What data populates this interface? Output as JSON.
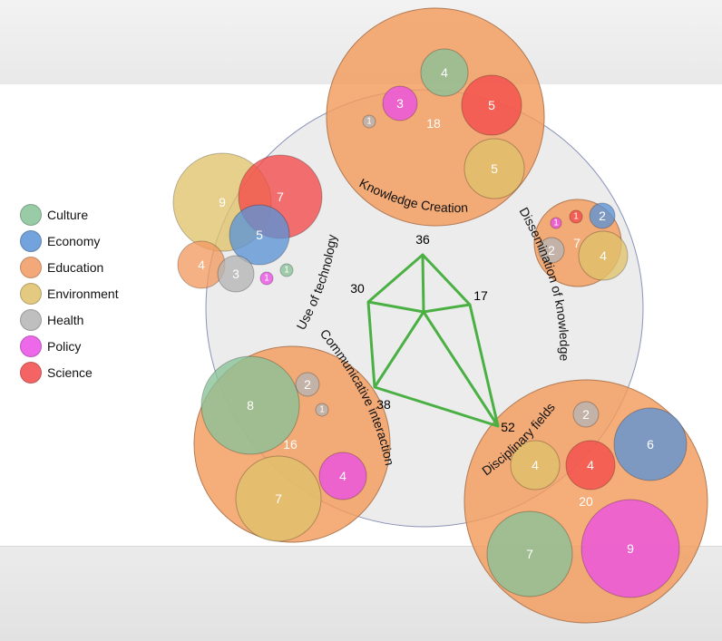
{
  "legend": [
    {
      "label": "Culture",
      "color": "#88c398"
    },
    {
      "label": "Economy",
      "color": "#5b93d6"
    },
    {
      "label": "Education",
      "color": "#f29a62"
    },
    {
      "label": "Environment",
      "color": "#e0c16b"
    },
    {
      "label": "Health",
      "color": "#b5b5b5"
    },
    {
      "label": "Policy",
      "color": "#ea4fe6"
    },
    {
      "label": "Science",
      "color": "#f44a4a"
    }
  ],
  "dimensions": {
    "knowledge_creation": "Knowledge Creation",
    "dissemination": "Dissemination of knowledge",
    "disciplinary": "Disciplinary fields",
    "communicative": "Communicative interaction",
    "technology": "Use of technology"
  },
  "radar": {
    "values": [
      "36",
      "17",
      "52",
      "38",
      "30"
    ],
    "line_color": "#4bb043"
  },
  "clusters": [
    {
      "name": "Knowledge Creation",
      "total": "18",
      "bubbles": [
        {
          "category": "Culture",
          "value": "4"
        },
        {
          "category": "Policy",
          "value": "3"
        },
        {
          "category": "Science",
          "value": "5"
        },
        {
          "category": "Health",
          "value": "1"
        },
        {
          "category": "Environment",
          "value": "5"
        }
      ]
    },
    {
      "name": "Dissemination of knowledge",
      "total": "7",
      "bubbles": [
        {
          "category": "Policy",
          "value": "1"
        },
        {
          "category": "Science",
          "value": "1"
        },
        {
          "category": "Economy",
          "value": "2"
        },
        {
          "category": "Health",
          "value": "2"
        },
        {
          "category": "Environment",
          "value": "4"
        }
      ]
    },
    {
      "name": "Use of technology",
      "total": "",
      "bubbles": [
        {
          "category": "Environment",
          "value": "9"
        },
        {
          "category": "Science",
          "value": "7"
        },
        {
          "category": "Economy",
          "value": "5"
        },
        {
          "category": "Education",
          "value": "4"
        },
        {
          "category": "Health",
          "value": "3"
        },
        {
          "category": "Policy",
          "value": "1"
        },
        {
          "category": "Culture",
          "value": "1"
        }
      ]
    },
    {
      "name": "Communicative interaction",
      "total": "16",
      "bubbles": [
        {
          "category": "Culture",
          "value": "8"
        },
        {
          "category": "Health",
          "value": "2"
        },
        {
          "category": "Health",
          "value": "1"
        },
        {
          "category": "Environment",
          "value": "7"
        },
        {
          "category": "Policy",
          "value": "4"
        }
      ]
    },
    {
      "name": "Disciplinary fields",
      "total": "20",
      "bubbles": [
        {
          "category": "Health",
          "value": "2"
        },
        {
          "category": "Economy",
          "value": "6"
        },
        {
          "category": "Environment",
          "value": "4"
        },
        {
          "category": "Science",
          "value": "4"
        },
        {
          "category": "Culture",
          "value": "7"
        },
        {
          "category": "Policy",
          "value": "9"
        }
      ]
    }
  ]
}
